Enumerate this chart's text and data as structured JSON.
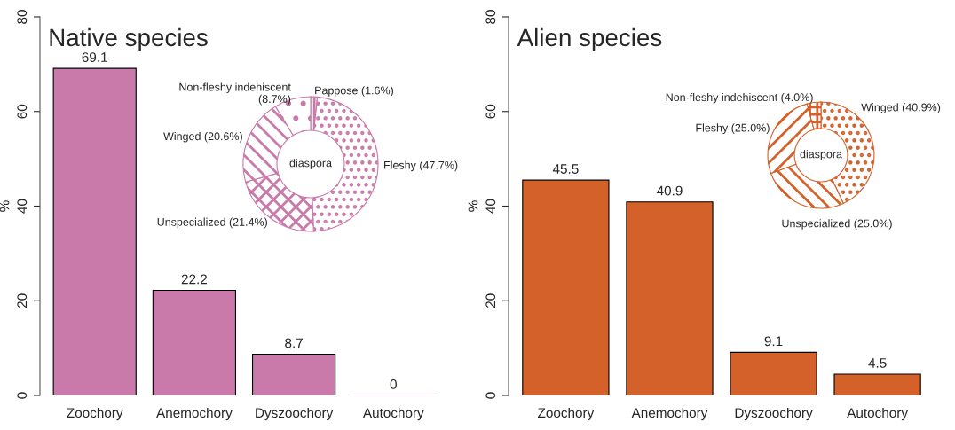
{
  "chart_data": [
    {
      "type": "bar",
      "title": "Native species",
      "ylabel": "%",
      "categories": [
        "Zoochory",
        "Anemochory",
        "Dyszoochory",
        "Autochory"
      ],
      "values": [
        69.1,
        22.2,
        8.7,
        0
      ],
      "color": "#c97aaa",
      "ylim": [
        0,
        80
      ],
      "yticks": [
        0,
        20,
        40,
        60,
        80
      ],
      "data_labels": true
    },
    {
      "type": "donut",
      "categories": [
        "Pappose (1.6%)",
        "Fleshy (47.7%)",
        "Unspecialized (21.4%)",
        "Winged (20.6%)",
        "Non-fleshy indehiscent\n(8.7%)"
      ],
      "values": [
        1.6,
        47.7,
        21.4,
        20.6,
        8.7
      ],
      "colors": [
        "#c97aaa",
        "#c97aaa",
        "#c97aaa",
        "#c97aaa",
        "#c97aaa"
      ],
      "annotations": [
        "diaspora"
      ]
    },
    {
      "type": "bar",
      "title": "Alien species",
      "ylabel": "%",
      "categories": [
        "Zoochory",
        "Anemochory",
        "Dyszoochory",
        "Autochory"
      ],
      "values": [
        45.5,
        40.9,
        9.1,
        4.5
      ],
      "color": "#d4602a",
      "ylim": [
        0,
        80
      ],
      "yticks": [
        0,
        20,
        40,
        60,
        80
      ],
      "data_labels": true
    },
    {
      "type": "donut",
      "categories": [
        "Winged (40.9%)",
        "Unspecialized (25.0%)",
        "Fleshy (25.0%)",
        "Non-fleshy indehiscent (4.0%)"
      ],
      "values": [
        40.9,
        25.0,
        25.0,
        4.0
      ],
      "colors": [
        "#d4602a",
        "#d4602a",
        "#d4602a",
        "#d4602a"
      ],
      "annotations": [
        "diaspora"
      ]
    }
  ]
}
